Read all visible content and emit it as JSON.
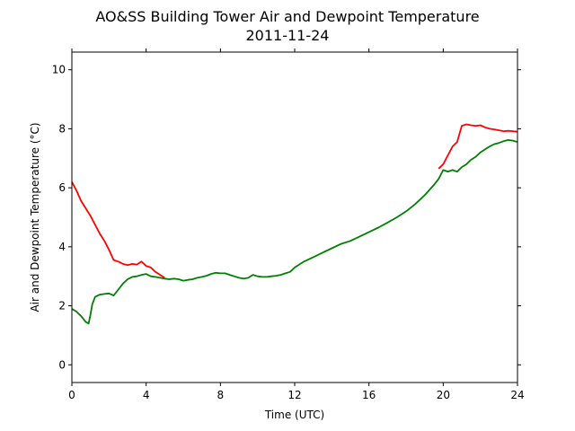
{
  "chart_data": {
    "type": "line",
    "title": "AO&SS Building Tower Air and Dewpoint Temperature",
    "subtitle": "2011-11-24",
    "xlabel": "Time (UTC)",
    "ylabel": "Air and Dewpoint Temperature (°C)",
    "xlim": [
      0,
      24
    ],
    "ylim": [
      -0.6,
      10.6
    ],
    "xticks": [
      0,
      4,
      8,
      12,
      16,
      20,
      24
    ],
    "yticks": [
      0,
      2,
      4,
      6,
      8,
      10
    ],
    "grid": false,
    "legend": null,
    "series": [
      {
        "color": "#ff0000",
        "x": [
          0,
          0.25,
          0.5,
          0.75,
          1.0,
          1.25,
          1.5,
          1.75,
          2.0,
          2.25,
          2.5,
          2.75,
          3.0,
          3.25,
          3.5,
          3.75,
          4.0,
          4.25,
          4.5,
          4.75,
          5.0
        ],
        "y": [
          6.2,
          5.9,
          5.55,
          5.3,
          5.05,
          4.75,
          4.45,
          4.2,
          3.9,
          3.55,
          3.5,
          3.42,
          3.38,
          3.42,
          3.4,
          3.5,
          3.35,
          3.3,
          3.15,
          3.05,
          2.95
        ]
      },
      {
        "color": "#008000",
        "x": [
          0,
          0.25,
          0.5,
          0.75,
          0.9,
          1.0,
          1.1,
          1.25,
          1.5,
          1.75,
          2.0,
          2.25,
          2.5,
          2.75,
          3.0,
          3.25,
          3.5,
          3.75,
          4.0,
          4.25,
          4.5,
          4.75,
          5.0,
          5.25,
          5.5,
          5.75,
          6.0,
          6.25,
          6.5,
          6.75,
          7.0,
          7.25,
          7.5,
          7.75,
          8.0,
          8.25,
          8.5,
          8.75,
          9.0,
          9.25,
          9.5,
          9.75,
          10.0,
          10.25,
          10.5,
          10.75,
          11.0,
          11.25,
          11.5,
          11.75,
          12.0,
          12.5,
          13.0,
          13.5,
          14.0,
          14.5,
          15.0,
          15.5,
          16.0,
          16.5,
          17.0,
          17.5,
          18.0,
          18.5,
          19.0,
          19.5,
          19.75,
          20.0,
          20.25,
          20.5,
          20.75,
          21.0,
          21.25,
          21.5,
          21.75,
          22.0,
          22.25,
          22.5,
          22.75,
          23.0,
          23.25,
          23.5,
          23.75,
          24.0
        ],
        "y": [
          1.9,
          1.8,
          1.65,
          1.45,
          1.4,
          1.7,
          2.05,
          2.3,
          2.38,
          2.4,
          2.42,
          2.35,
          2.55,
          2.75,
          2.9,
          2.98,
          3.0,
          3.05,
          3.08,
          3.0,
          2.98,
          2.95,
          2.92,
          2.9,
          2.92,
          2.9,
          2.85,
          2.88,
          2.9,
          2.95,
          2.98,
          3.02,
          3.08,
          3.12,
          3.1,
          3.1,
          3.05,
          3.0,
          2.95,
          2.92,
          2.95,
          3.05,
          3.0,
          2.98,
          2.98,
          3.0,
          3.02,
          3.05,
          3.1,
          3.15,
          3.3,
          3.5,
          3.65,
          3.8,
          3.95,
          4.1,
          4.2,
          4.35,
          4.5,
          4.65,
          4.82,
          5.0,
          5.2,
          5.45,
          5.75,
          6.1,
          6.3,
          6.6,
          6.55,
          6.6,
          6.55,
          6.7,
          6.8,
          6.95,
          7.05,
          7.2,
          7.3,
          7.4,
          7.48,
          7.52,
          7.58,
          7.62,
          7.6,
          7.55
        ]
      },
      {
        "color": "#ff0000",
        "x": [
          19.75,
          20.0,
          20.25,
          20.5,
          20.75,
          21.0,
          21.25,
          21.5,
          21.75,
          22.0,
          22.25,
          22.5,
          22.75,
          23.0,
          23.25,
          23.5,
          23.75,
          24.0
        ],
        "y": [
          6.65,
          6.8,
          7.1,
          7.4,
          7.55,
          8.1,
          8.15,
          8.12,
          8.1,
          8.12,
          8.05,
          8.0,
          7.98,
          7.95,
          7.92,
          7.93,
          7.92,
          7.9
        ]
      }
    ]
  }
}
